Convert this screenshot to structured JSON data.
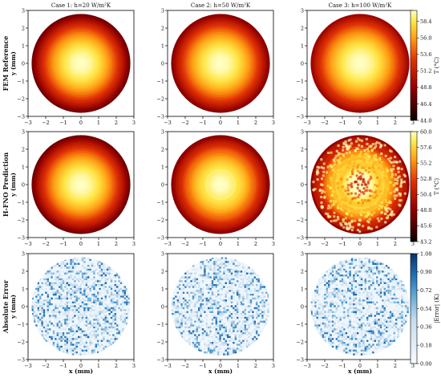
{
  "chart_data": {
    "type": "heatmap",
    "layout": "3x3 grid of disk heatmaps with a shared colorbar per row",
    "columns": [
      {
        "title": "Case 1: h=20 W/m²K"
      },
      {
        "title": "Case 2: h=50 W/m²K"
      },
      {
        "title": "Case 3: h=100 W/m²K"
      }
    ],
    "x_axis": {
      "label": "x (mm)",
      "range": [
        -3,
        3
      ],
      "ticks": [
        "−3",
        "−2",
        "−1",
        "0",
        "1",
        "2",
        "3"
      ]
    },
    "y_axis": {
      "label": "y (mm)",
      "range": [
        -3,
        3
      ],
      "ticks": [
        "−3",
        "−2",
        "−1",
        "0",
        "1",
        "2",
        "3"
      ]
    },
    "domain": {
      "shape": "disk",
      "radius_mm": 2.8
    },
    "rows": [
      {
        "label": "FEM Reference",
        "colormap": "hot",
        "colorbar": {
          "label": "T (°C)",
          "range": [
            44.0,
            60.0
          ],
          "ticks": [
            "44.0",
            "46.4",
            "48.8",
            "51.2",
            "53.6",
            "56.0",
            "58.4"
          ]
        },
        "field": "radial temperature, maximum at center",
        "noise": 0.0,
        "contour_levels": 22
      },
      {
        "label": "H-FNO Prediction",
        "colormap": "hot",
        "colorbar": {
          "label": "T (°C)",
          "range": [
            43.2,
            60.0
          ],
          "ticks": [
            "43.2",
            "45.6",
            "48.0",
            "50.4",
            "52.8",
            "55.2",
            "57.6",
            "60.0"
          ]
        },
        "field": "radial temperature, maximum at center",
        "noise_per_case": [
          0.0,
          0.01,
          0.05
        ],
        "contour_levels": 22
      },
      {
        "label": "Absolute Error",
        "colormap": "Blues",
        "colorbar": {
          "label": "|Error| (K)",
          "range": [
            0.0,
            1.08
          ],
          "ticks": [
            "0.00",
            "0.18",
            "0.36",
            "0.54",
            "0.72",
            "0.90",
            "1.08"
          ]
        },
        "field": "randomly distributed absolute error, mostly below 0.5 K"
      }
    ]
  }
}
